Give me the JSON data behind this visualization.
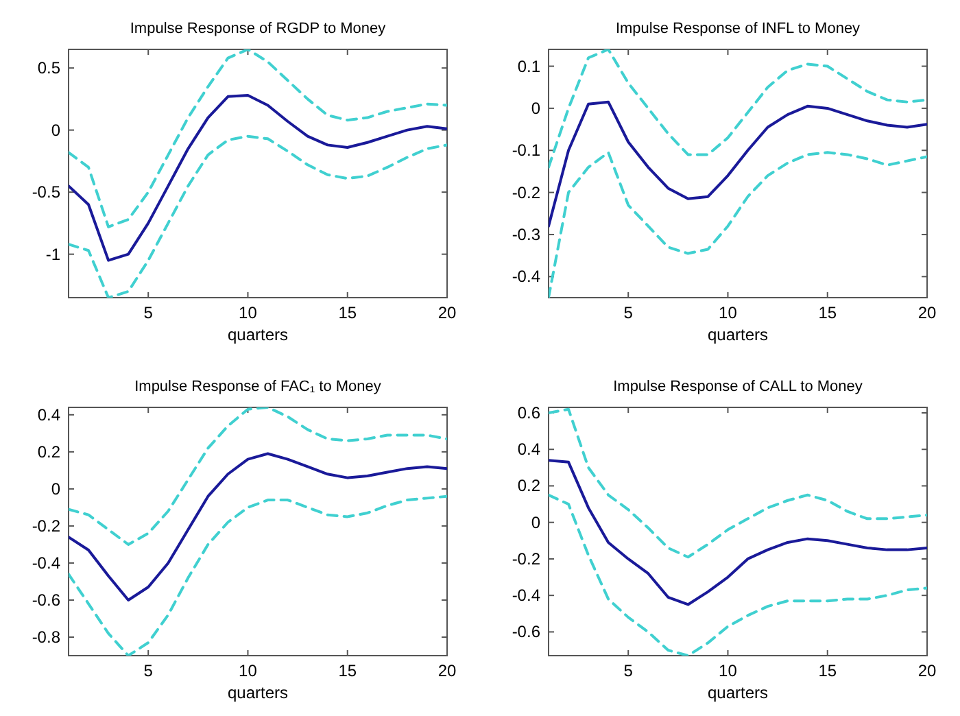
{
  "chart_data": [
    {
      "type": "line",
      "title": "Impulse Response of RGDP to Money",
      "xlabel": "quarters",
      "x": [
        1,
        2,
        3,
        4,
        5,
        6,
        7,
        8,
        9,
        10,
        11,
        12,
        13,
        14,
        15,
        16,
        17,
        18,
        19,
        20
      ],
      "xlim": [
        1,
        20
      ],
      "xticks": [
        5,
        10,
        15,
        20
      ],
      "ylim": [
        -1.35,
        0.65
      ],
      "yticks": [
        {
          "value": -1,
          "label": "-1"
        },
        {
          "value": -0.5,
          "label": "-0.5"
        },
        0,
        0.5
      ],
      "grid": false,
      "marker": "none",
      "series": [
        {
          "color": "#40d0d0",
          "line_style": "dashed",
          "values": [
            -0.18,
            -0.3,
            -0.78,
            -0.72,
            -0.5,
            -0.2,
            0.1,
            0.35,
            0.58,
            0.65,
            0.55,
            0.4,
            0.25,
            0.12,
            0.08,
            0.1,
            0.15,
            0.18,
            0.21,
            0.2
          ]
        },
        {
          "color": "#40d0d0",
          "line_style": "dashed",
          "values": [
            -0.92,
            -0.97,
            -1.35,
            -1.3,
            -1.05,
            -0.75,
            -0.45,
            -0.2,
            -0.08,
            -0.05,
            -0.07,
            -0.17,
            -0.28,
            -0.36,
            -0.39,
            -0.37,
            -0.3,
            -0.22,
            -0.15,
            -0.12
          ]
        },
        {
          "color": "#1a1a99",
          "line_style": "solid",
          "values": [
            -0.45,
            -0.6,
            -1.05,
            -1.0,
            -0.75,
            -0.45,
            -0.15,
            0.1,
            0.27,
            0.28,
            0.2,
            0.07,
            -0.05,
            -0.12,
            -0.14,
            -0.1,
            -0.05,
            0.0,
            0.03,
            0.01
          ]
        }
      ]
    },
    {
      "type": "line",
      "title": "Impulse Response of INFL to Money",
      "xlabel": "quarters",
      "x": [
        1,
        2,
        3,
        4,
        5,
        6,
        7,
        8,
        9,
        10,
        11,
        12,
        13,
        14,
        15,
        16,
        17,
        18,
        19,
        20
      ],
      "xlim": [
        1,
        20
      ],
      "xticks": [
        5,
        10,
        15,
        20
      ],
      "ylim": [
        -0.45,
        0.14
      ],
      "yticks": [
        {
          "value": -0.4,
          "label": "-0.4"
        },
        {
          "value": -0.3,
          "label": "-0.3"
        },
        {
          "value": -0.2,
          "label": "-0.2"
        },
        {
          "value": -0.1,
          "label": "-0.1"
        },
        0,
        0.1
      ],
      "grid": false,
      "marker": "none",
      "series": [
        {
          "color": "#40d0d0",
          "line_style": "dashed",
          "values": [
            -0.14,
            0.0,
            0.12,
            0.14,
            0.06,
            0.0,
            -0.06,
            -0.11,
            -0.11,
            -0.07,
            -0.01,
            0.05,
            0.09,
            0.105,
            0.1,
            0.07,
            0.04,
            0.02,
            0.015,
            0.02
          ]
        },
        {
          "color": "#40d0d0",
          "line_style": "dashed",
          "values": [
            -0.45,
            -0.2,
            -0.14,
            -0.105,
            -0.23,
            -0.28,
            -0.33,
            -0.345,
            -0.335,
            -0.28,
            -0.21,
            -0.16,
            -0.13,
            -0.11,
            -0.105,
            -0.11,
            -0.12,
            -0.135,
            -0.125,
            -0.115
          ]
        },
        {
          "color": "#1a1a99",
          "line_style": "solid",
          "values": [
            -0.28,
            -0.1,
            0.01,
            0.015,
            -0.08,
            -0.14,
            -0.19,
            -0.215,
            -0.21,
            -0.16,
            -0.1,
            -0.045,
            -0.015,
            0.005,
            0.0,
            -0.015,
            -0.03,
            -0.04,
            -0.045,
            -0.038
          ]
        }
      ]
    },
    {
      "type": "line",
      "title": "Impulse Response of FAC₁ to Money",
      "xlabel": "quarters",
      "x": [
        1,
        2,
        3,
        4,
        5,
        6,
        7,
        8,
        9,
        10,
        11,
        12,
        13,
        14,
        15,
        16,
        17,
        18,
        19,
        20
      ],
      "xlim": [
        1,
        20
      ],
      "xticks": [
        5,
        10,
        15,
        20
      ],
      "ylim": [
        -0.9,
        0.44
      ],
      "yticks": [
        {
          "value": -0.8,
          "label": "-0.8"
        },
        {
          "value": -0.6,
          "label": "-0.6"
        },
        {
          "value": -0.4,
          "label": "-0.4"
        },
        {
          "value": -0.2,
          "label": "-0.2"
        },
        0,
        0.2,
        0.4
      ],
      "grid": false,
      "marker": "none",
      "series": [
        {
          "color": "#40d0d0",
          "line_style": "dashed",
          "values": [
            -0.11,
            -0.14,
            -0.22,
            -0.3,
            -0.24,
            -0.12,
            0.05,
            0.22,
            0.34,
            0.43,
            0.44,
            0.39,
            0.32,
            0.27,
            0.26,
            0.27,
            0.29,
            0.29,
            0.29,
            0.27
          ]
        },
        {
          "color": "#40d0d0",
          "line_style": "dashed",
          "values": [
            -0.46,
            -0.62,
            -0.78,
            -0.9,
            -0.83,
            -0.68,
            -0.48,
            -0.3,
            -0.18,
            -0.1,
            -0.06,
            -0.06,
            -0.1,
            -0.14,
            -0.15,
            -0.13,
            -0.09,
            -0.06,
            -0.05,
            -0.04
          ]
        },
        {
          "color": "#1a1a99",
          "line_style": "solid",
          "values": [
            -0.26,
            -0.33,
            -0.47,
            -0.6,
            -0.53,
            -0.4,
            -0.22,
            -0.04,
            0.08,
            0.16,
            0.19,
            0.16,
            0.12,
            0.08,
            0.06,
            0.07,
            0.09,
            0.11,
            0.12,
            0.11
          ]
        }
      ]
    },
    {
      "type": "line",
      "title": "Impulse Response of CALL to Money",
      "xlabel": "quarters",
      "x": [
        1,
        2,
        3,
        4,
        5,
        6,
        7,
        8,
        9,
        10,
        11,
        12,
        13,
        14,
        15,
        16,
        17,
        18,
        19,
        20
      ],
      "xlim": [
        1,
        20
      ],
      "xticks": [
        5,
        10,
        15,
        20
      ],
      "ylim": [
        -0.73,
        0.63
      ],
      "yticks": [
        {
          "value": -0.6,
          "label": "-0.6"
        },
        {
          "value": -0.4,
          "label": "-0.4"
        },
        {
          "value": -0.2,
          "label": "-0.2"
        },
        0,
        0.2,
        0.4,
        0.6
      ],
      "grid": false,
      "marker": "none",
      "series": [
        {
          "color": "#40d0d0",
          "line_style": "dashed",
          "values": [
            0.6,
            0.62,
            0.3,
            0.15,
            0.07,
            -0.03,
            -0.14,
            -0.19,
            -0.12,
            -0.04,
            0.02,
            0.08,
            0.12,
            0.15,
            0.12,
            0.06,
            0.02,
            0.02,
            0.03,
            0.04
          ]
        },
        {
          "color": "#40d0d0",
          "line_style": "dashed",
          "values": [
            0.15,
            0.1,
            -0.18,
            -0.42,
            -0.52,
            -0.6,
            -0.7,
            -0.73,
            -0.66,
            -0.57,
            -0.51,
            -0.46,
            -0.43,
            -0.43,
            -0.43,
            -0.42,
            -0.42,
            -0.4,
            -0.37,
            -0.36
          ]
        },
        {
          "color": "#1a1a99",
          "line_style": "solid",
          "values": [
            0.34,
            0.33,
            0.08,
            -0.11,
            -0.2,
            -0.28,
            -0.41,
            -0.45,
            -0.38,
            -0.3,
            -0.2,
            -0.15,
            -0.11,
            -0.09,
            -0.1,
            -0.12,
            -0.14,
            -0.15,
            -0.15,
            -0.14
          ]
        }
      ]
    }
  ]
}
